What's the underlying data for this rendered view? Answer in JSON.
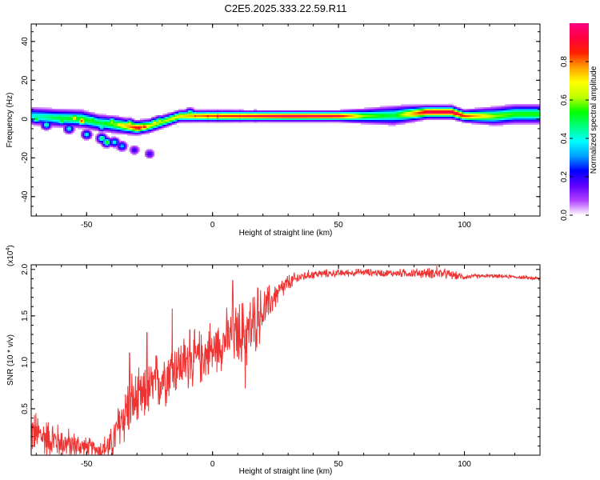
{
  "title": "C2E5.2025.333.22.59.R11",
  "chart_data": [
    {
      "type": "heatmap",
      "title": "C2E5.2025.333.22.59.R11",
      "xlabel": "Height of straight line (km)",
      "ylabel": "Frequency (Hz)",
      "xlim": [
        -72,
        130
      ],
      "ylim": [
        -50,
        49
      ],
      "xticks": [
        -50,
        0,
        50,
        100
      ],
      "yticks": [
        -40,
        -20,
        0,
        20,
        40
      ],
      "colorbar": {
        "label": "Normalized spectral amplitude",
        "range": [
          0,
          1
        ],
        "ticks": [
          "0.0",
          "0.2",
          "0.4",
          "0.6",
          "0.8"
        ],
        "tick_values": [
          0,
          0.2,
          0.4,
          0.6,
          0.8
        ],
        "colors": [
          "#ffffff",
          "#b040ff",
          "#6000ff",
          "#0000ff",
          "#00a0ff",
          "#00ffff",
          "#00ff80",
          "#00ff00",
          "#c0ff00",
          "#ffff00",
          "#ffa000",
          "#ff2000",
          "#ff0040",
          "#ff0080"
        ]
      },
      "ridge": [
        {
          "x": -72,
          "f": 1.5,
          "a": 0.4,
          "w": 3.0
        },
        {
          "x": -62,
          "f": 0.5,
          "a": 0.5,
          "w": 3.0
        },
        {
          "x": -52,
          "f": 0.0,
          "a": 0.55,
          "w": 3.0
        },
        {
          "x": -45,
          "f": -2.0,
          "a": 0.5,
          "w": 2.8
        },
        {
          "x": -38,
          "f": -3.0,
          "a": 0.6,
          "w": 2.8
        },
        {
          "x": -30,
          "f": -4.5,
          "a": 0.9,
          "w": 2.3
        },
        {
          "x": -25,
          "f": -3.5,
          "a": 0.65,
          "w": 2.3
        },
        {
          "x": -20,
          "f": -1.5,
          "a": 0.6,
          "w": 2.2
        },
        {
          "x": -13,
          "f": 1.5,
          "a": 0.7,
          "w": 2.0
        },
        {
          "x": -5,
          "f": 1.5,
          "a": 0.8,
          "w": 1.9
        },
        {
          "x": 5,
          "f": 1.5,
          "a": 0.85,
          "w": 1.9
        },
        {
          "x": 15,
          "f": 1.5,
          "a": 0.9,
          "w": 1.8
        },
        {
          "x": 30,
          "f": 1.5,
          "a": 0.95,
          "w": 1.8
        },
        {
          "x": 50,
          "f": 1.5,
          "a": 0.92,
          "w": 1.8
        },
        {
          "x": 60,
          "f": 1.5,
          "a": 0.6,
          "w": 2.4
        },
        {
          "x": 72,
          "f": 1.8,
          "a": 0.5,
          "w": 3.2
        },
        {
          "x": 85,
          "f": 3.5,
          "a": 0.95,
          "w": 2.2
        },
        {
          "x": 95,
          "f": 3.5,
          "a": 0.95,
          "w": 2.2
        },
        {
          "x": 100,
          "f": 1.5,
          "a": 0.85,
          "w": 2.0
        },
        {
          "x": 112,
          "f": 1.5,
          "a": 0.6,
          "w": 3.0
        },
        {
          "x": 120,
          "f": 2.5,
          "a": 0.55,
          "w": 3.2
        },
        {
          "x": 130,
          "f": 2.5,
          "a": 0.55,
          "w": 3.2
        }
      ],
      "blobs": [
        {
          "x": -70,
          "f": 0,
          "a": 0.55
        },
        {
          "x": -66,
          "f": -3,
          "a": 0.45
        },
        {
          "x": -64,
          "f": 1,
          "a": 0.5
        },
        {
          "x": -60,
          "f": -1,
          "a": 0.55
        },
        {
          "x": -57,
          "f": -5,
          "a": 0.4
        },
        {
          "x": -55,
          "f": 0.5,
          "a": 0.75
        },
        {
          "x": -52,
          "f": -1,
          "a": 0.85
        },
        {
          "x": -50,
          "f": -8,
          "a": 0.4
        },
        {
          "x": -48,
          "f": -0.5,
          "a": 0.6
        },
        {
          "x": -46,
          "f": -2,
          "a": 0.55
        },
        {
          "x": -44,
          "f": -10,
          "a": 0.5
        },
        {
          "x": -44,
          "f": -4,
          "a": 0.45
        },
        {
          "x": -42,
          "f": -12,
          "a": 0.55
        },
        {
          "x": -40,
          "f": -1.5,
          "a": 0.65
        },
        {
          "x": -39,
          "f": -12,
          "a": 0.4
        },
        {
          "x": -37,
          "f": -3,
          "a": 0.75
        },
        {
          "x": -36,
          "f": -14,
          "a": 0.35
        },
        {
          "x": -33,
          "f": -2.5,
          "a": 0.7
        },
        {
          "x": -31,
          "f": -16,
          "a": 0.2
        },
        {
          "x": -29,
          "f": -4.5,
          "a": 0.95
        },
        {
          "x": -27,
          "f": -4,
          "a": 0.9
        },
        {
          "x": -25,
          "f": -18,
          "a": 0.2
        },
        {
          "x": -23,
          "f": -2,
          "a": 0.7
        },
        {
          "x": -21,
          "f": -1,
          "a": 0.65
        },
        {
          "x": -17,
          "f": 0,
          "a": 0.6
        },
        {
          "x": -13,
          "f": 1.5,
          "a": 0.75
        },
        {
          "x": -9,
          "f": 3,
          "a": 0.55
        },
        {
          "x": -7,
          "f": 1.5,
          "a": 0.85
        },
        {
          "x": -2,
          "f": 1.5,
          "a": 0.9
        },
        {
          "x": 2,
          "f": 1.5,
          "a": 0.95
        },
        {
          "x": 7,
          "f": 1.5,
          "a": 0.85
        },
        {
          "x": 11,
          "f": 1.5,
          "a": 0.9
        },
        {
          "x": 17,
          "f": 1.5,
          "a": 0.9
        }
      ]
    },
    {
      "type": "line",
      "xlabel": "Height of straight line (km)",
      "ylabel": "SNR (10 * v/v)",
      "ylabel_multiplier": "(x10",
      "ylabel_exponent": "4",
      "ylabel_close": ")",
      "xlim": [
        -72,
        130
      ],
      "ylim": [
        0,
        2.05
      ],
      "xticks": [
        -50,
        0,
        50,
        100
      ],
      "yticks": [
        0.5,
        1.0,
        1.5,
        2.0
      ],
      "yticklabels": [
        "0.5",
        "1.0",
        "1.5",
        "2.0"
      ],
      "color": "#ee3333",
      "envelope": [
        [
          -72,
          0.25,
          0.25
        ],
        [
          -65,
          0.18,
          0.22
        ],
        [
          -58,
          0.12,
          0.18
        ],
        [
          -50,
          0.08,
          0.12
        ],
        [
          -45,
          0.06,
          0.1
        ],
        [
          -40,
          0.1,
          0.2
        ],
        [
          -36,
          0.4,
          0.35
        ],
        [
          -33,
          0.55,
          0.35
        ],
        [
          -28,
          0.6,
          0.3
        ],
        [
          -25,
          0.7,
          0.3
        ],
        [
          -20,
          0.85,
          0.35
        ],
        [
          -15,
          0.95,
          0.3
        ],
        [
          -10,
          1.0,
          0.3
        ],
        [
          -5,
          1.05,
          0.3
        ],
        [
          0,
          1.12,
          0.25
        ],
        [
          5,
          1.25,
          0.3
        ],
        [
          10,
          1.3,
          0.35
        ],
        [
          15,
          1.35,
          0.4
        ],
        [
          20,
          1.55,
          0.25
        ],
        [
          25,
          1.72,
          0.15
        ],
        [
          30,
          1.85,
          0.1
        ],
        [
          35,
          1.92,
          0.06
        ],
        [
          40,
          1.95,
          0.05
        ],
        [
          50,
          1.96,
          0.04
        ],
        [
          60,
          1.97,
          0.04
        ],
        [
          70,
          1.96,
          0.04
        ],
        [
          80,
          1.96,
          0.05
        ],
        [
          90,
          1.96,
          0.06
        ],
        [
          95,
          1.94,
          0.05
        ],
        [
          100,
          1.92,
          0.03
        ],
        [
          110,
          1.93,
          0.02
        ],
        [
          120,
          1.92,
          0.02
        ],
        [
          130,
          1.9,
          0.02
        ]
      ],
      "spikes": [
        {
          "x": -33,
          "y": 1.1
        },
        {
          "x": -26,
          "y": 1.32
        },
        {
          "x": -16,
          "y": 1.58
        },
        {
          "x": -9,
          "y": 1.35
        },
        {
          "x": -1,
          "y": 1.42
        },
        {
          "x": 8,
          "y": 1.88
        },
        {
          "x": 13,
          "y": 0.72
        },
        {
          "x": 18,
          "y": 1.8
        },
        {
          "x": 89,
          "y": 2.04
        }
      ]
    }
  ]
}
